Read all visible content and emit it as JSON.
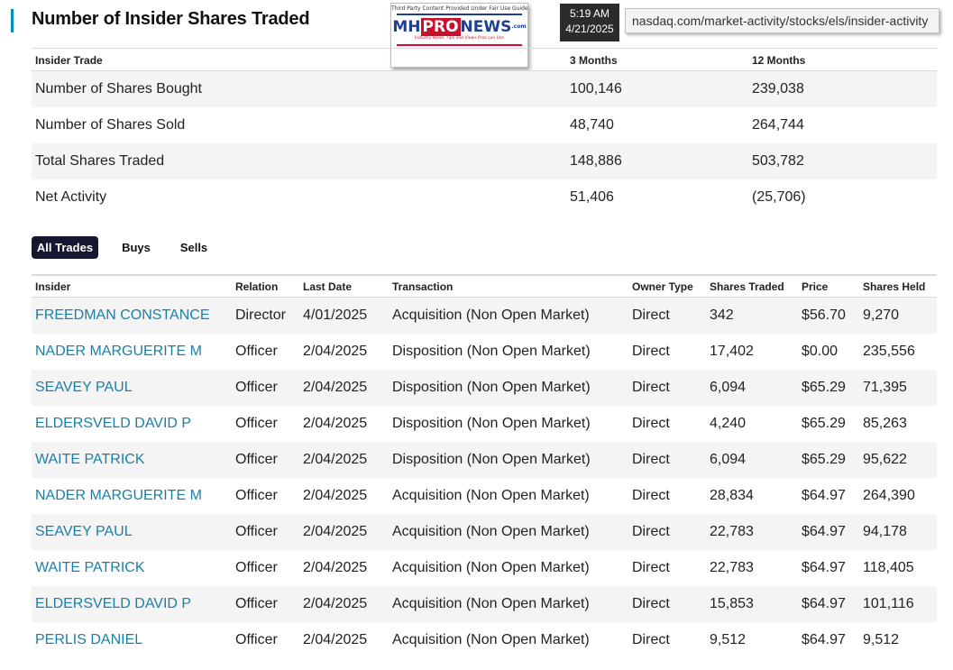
{
  "page": {
    "title": "Number of Insider Shares Traded"
  },
  "watermark": {
    "top_text": "Third Party Content Provided Under Fair Use Guidelines",
    "logo_mh": "MH",
    "logo_pro": "PRO",
    "logo_news": "NEWS",
    "logo_dom": ".com",
    "tagline": "Industry News, Tips and Views Pros can Use"
  },
  "timestamp": {
    "time": "5:19 AM",
    "date": "4/21/2025"
  },
  "url": "nasdaq.com/market-activity/stocks/els/insider-activity",
  "summary": {
    "headers": {
      "label": "Insider Trade",
      "three": "3 Months",
      "twelve": "12 Months"
    },
    "rows": [
      {
        "label": "Number of Shares Bought",
        "three": "100,146",
        "twelve": "239,038"
      },
      {
        "label": "Number of Shares Sold",
        "three": "48,740",
        "twelve": "264,744"
      },
      {
        "label": "Total Shares Traded",
        "three": "148,886",
        "twelve": "503,782"
      },
      {
        "label": "Net Activity",
        "three": "51,406",
        "twelve": "(25,706)"
      }
    ]
  },
  "tabs": [
    {
      "label": "All Trades",
      "active": true
    },
    {
      "label": "Buys",
      "active": false
    },
    {
      "label": "Sells",
      "active": false
    }
  ],
  "trades": {
    "headers": {
      "insider": "Insider",
      "relation": "Relation",
      "date": "Last Date",
      "transaction": "Transaction",
      "owner": "Owner Type",
      "shares": "Shares Traded",
      "price": "Price",
      "held": "Shares Held"
    },
    "rows": [
      {
        "insider": "FREEDMAN CONSTANCE",
        "relation": "Director",
        "date": "4/01/2025",
        "transaction": "Acquisition (Non Open Market)",
        "owner": "Direct",
        "shares": "342",
        "price": "$56.70",
        "held": "9,270"
      },
      {
        "insider": "NADER MARGUERITE M",
        "relation": "Officer",
        "date": "2/04/2025",
        "transaction": "Disposition (Non Open Market)",
        "owner": "Direct",
        "shares": "17,402",
        "price": "$0.00",
        "held": "235,556"
      },
      {
        "insider": "SEAVEY PAUL",
        "relation": "Officer",
        "date": "2/04/2025",
        "transaction": "Disposition (Non Open Market)",
        "owner": "Direct",
        "shares": "6,094",
        "price": "$65.29",
        "held": "71,395"
      },
      {
        "insider": "ELDERSVELD DAVID P",
        "relation": "Officer",
        "date": "2/04/2025",
        "transaction": "Disposition (Non Open Market)",
        "owner": "Direct",
        "shares": "4,240",
        "price": "$65.29",
        "held": "85,263"
      },
      {
        "insider": "WAITE PATRICK",
        "relation": "Officer",
        "date": "2/04/2025",
        "transaction": "Disposition (Non Open Market)",
        "owner": "Direct",
        "shares": "6,094",
        "price": "$65.29",
        "held": "95,622"
      },
      {
        "insider": "NADER MARGUERITE M",
        "relation": "Officer",
        "date": "2/04/2025",
        "transaction": "Acquisition (Non Open Market)",
        "owner": "Direct",
        "shares": "28,834",
        "price": "$64.97",
        "held": "264,390"
      },
      {
        "insider": "SEAVEY PAUL",
        "relation": "Officer",
        "date": "2/04/2025",
        "transaction": "Acquisition (Non Open Market)",
        "owner": "Direct",
        "shares": "22,783",
        "price": "$64.97",
        "held": "94,178"
      },
      {
        "insider": "WAITE PATRICK",
        "relation": "Officer",
        "date": "2/04/2025",
        "transaction": "Acquisition (Non Open Market)",
        "owner": "Direct",
        "shares": "22,783",
        "price": "$64.97",
        "held": "118,405"
      },
      {
        "insider": "ELDERSVELD DAVID P",
        "relation": "Officer",
        "date": "2/04/2025",
        "transaction": "Acquisition (Non Open Market)",
        "owner": "Direct",
        "shares": "15,853",
        "price": "$64.97",
        "held": "101,116"
      },
      {
        "insider": "PERLIS DANIEL",
        "relation": "Officer",
        "date": "2/04/2025",
        "transaction": "Acquisition (Non Open Market)",
        "owner": "Direct",
        "shares": "9,512",
        "price": "$64.97",
        "held": "9,512"
      }
    ]
  }
}
